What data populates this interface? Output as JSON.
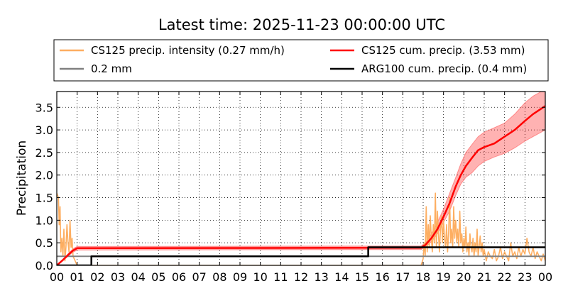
{
  "chart_data": {
    "type": "line",
    "title": "Latest time: 2025-11-23 00:00:00 UTC",
    "ylabel": "Precipitation",
    "xlabel": "",
    "x_range": [
      0,
      24
    ],
    "ylim": [
      0,
      3.85
    ],
    "x_tick_labels": [
      "00",
      "01",
      "02",
      "03",
      "04",
      "05",
      "06",
      "07",
      "08",
      "09",
      "10",
      "11",
      "12",
      "13",
      "14",
      "15",
      "16",
      "17",
      "18",
      "19",
      "20",
      "21",
      "22",
      "23",
      "00"
    ],
    "y_ticks": [
      0.0,
      0.5,
      1.0,
      1.5,
      2.0,
      2.5,
      3.0,
      3.5
    ],
    "y_tick_labels": [
      "0.0",
      "0.5",
      "1.0",
      "1.5",
      "2.0",
      "2.5",
      "3.0",
      "3.5"
    ],
    "grid": true,
    "legend_position": "top",
    "legend": [
      {
        "label": "CS125 precip. intensity (0.27 mm/h)",
        "color": "#fdae61"
      },
      {
        "label": "CS125 cum. precip. (3.53 mm)",
        "color": "#ff0000"
      },
      {
        "label": "0.2 mm",
        "color": "#808080"
      },
      {
        "label": "ARG100 cum. precip. (0.4 mm)",
        "color": "#000000"
      }
    ],
    "series": [
      {
        "name": "CS125 precip. intensity (0.27 mm/h)",
        "color": "#fdae61",
        "x": [
          0.0,
          0.08,
          0.12,
          0.16,
          0.2,
          0.25,
          0.3,
          0.35,
          0.4,
          0.45,
          0.5,
          0.55,
          0.6,
          0.65,
          0.7,
          0.75,
          0.8,
          0.85,
          0.9,
          0.95,
          1.0,
          1.1,
          17.9,
          18.0,
          18.05,
          18.1,
          18.15,
          18.2,
          18.25,
          18.3,
          18.35,
          18.4,
          18.45,
          18.5,
          18.55,
          18.6,
          18.65,
          18.7,
          18.75,
          18.8,
          18.85,
          18.9,
          18.95,
          19.0,
          19.05,
          19.1,
          19.15,
          19.2,
          19.25,
          19.3,
          19.35,
          19.4,
          19.45,
          19.5,
          19.55,
          19.6,
          19.65,
          19.7,
          19.75,
          19.8,
          19.85,
          19.9,
          19.95,
          20.0,
          20.05,
          20.1,
          20.15,
          20.2,
          20.25,
          20.3,
          20.35,
          20.4,
          20.45,
          20.5,
          20.55,
          20.6,
          20.65,
          20.7,
          20.75,
          20.8,
          20.85,
          20.9,
          20.95,
          21.0,
          21.1,
          21.2,
          21.3,
          21.4,
          21.5,
          21.6,
          21.7,
          21.8,
          21.9,
          22.0,
          22.1,
          22.2,
          22.3,
          22.4,
          22.5,
          22.6,
          22.7,
          22.8,
          22.9,
          23.0,
          23.1,
          23.2,
          23.3,
          23.4,
          23.5,
          23.6,
          23.7,
          23.8,
          23.9,
          24.0
        ],
        "y": [
          1.6,
          1.5,
          0.9,
          1.3,
          0.3,
          0.6,
          0.2,
          0.8,
          0.1,
          0.4,
          0.9,
          0.5,
          0.3,
          1.0,
          0.4,
          0.6,
          0.2,
          0.15,
          0.1,
          0.05,
          0.0,
          0.0,
          0.0,
          0.15,
          0.5,
          0.2,
          1.3,
          0.3,
          0.9,
          0.4,
          1.1,
          0.6,
          0.3,
          0.9,
          0.5,
          1.6,
          0.4,
          1.2,
          0.7,
          0.3,
          0.8,
          1.1,
          0.5,
          1.0,
          0.6,
          0.4,
          0.9,
          0.3,
          0.7,
          1.5,
          0.5,
          0.8,
          0.4,
          1.3,
          0.6,
          1.0,
          0.5,
          0.8,
          0.4,
          1.2,
          0.5,
          0.7,
          0.3,
          0.6,
          0.4,
          0.85,
          0.3,
          0.5,
          0.2,
          0.7,
          0.4,
          0.3,
          0.6,
          0.2,
          0.5,
          0.3,
          0.8,
          0.2,
          0.4,
          0.65,
          0.3,
          0.5,
          0.2,
          0.35,
          0.1,
          0.3,
          0.2,
          0.15,
          0.35,
          0.1,
          0.2,
          0.4,
          0.15,
          0.3,
          0.2,
          0.1,
          0.5,
          0.2,
          0.3,
          0.15,
          0.4,
          0.2,
          0.35,
          0.25,
          0.6,
          0.3,
          0.2,
          0.4,
          0.15,
          0.3,
          0.2,
          0.1,
          0.25,
          0.1
        ]
      },
      {
        "name": "0.2 mm",
        "color": "#808080",
        "x": [
          0,
          24
        ],
        "y": [
          0.2,
          0.2
        ]
      },
      {
        "name": "CS125 cum. precip. (3.53 mm)",
        "color": "#ff0000",
        "x": [
          0.0,
          0.3,
          0.6,
          0.8,
          1.0,
          17.9,
          18.1,
          18.4,
          18.7,
          19.0,
          19.3,
          19.6,
          19.85,
          20.1,
          20.4,
          20.7,
          21.0,
          21.5,
          22.0,
          22.5,
          23.0,
          23.4,
          23.8,
          24.0
        ],
        "y": [
          0.0,
          0.12,
          0.25,
          0.33,
          0.38,
          0.39,
          0.45,
          0.6,
          0.8,
          1.08,
          1.38,
          1.75,
          2.0,
          2.2,
          2.38,
          2.55,
          2.62,
          2.7,
          2.85,
          3.0,
          3.2,
          3.35,
          3.47,
          3.53
        ],
        "y_lower": [
          0.0,
          0.1,
          0.22,
          0.29,
          0.34,
          0.35,
          0.4,
          0.52,
          0.7,
          0.95,
          1.2,
          1.55,
          1.8,
          1.95,
          2.05,
          2.2,
          2.3,
          2.4,
          2.48,
          2.6,
          2.75,
          2.85,
          2.95,
          3.0
        ],
        "y_upper": [
          0.0,
          0.14,
          0.28,
          0.37,
          0.42,
          0.43,
          0.5,
          0.7,
          0.95,
          1.25,
          1.6,
          1.95,
          2.25,
          2.5,
          2.68,
          2.85,
          2.95,
          3.05,
          3.15,
          3.35,
          3.6,
          3.75,
          3.85,
          3.9
        ]
      },
      {
        "name": "ARG100 cum. precip. (0.4 mm)",
        "color": "#000000",
        "x": [
          0.0,
          1.7,
          1.7,
          15.3,
          15.3,
          24.0
        ],
        "y": [
          0.0,
          0.0,
          0.2,
          0.2,
          0.4,
          0.4
        ]
      }
    ]
  }
}
